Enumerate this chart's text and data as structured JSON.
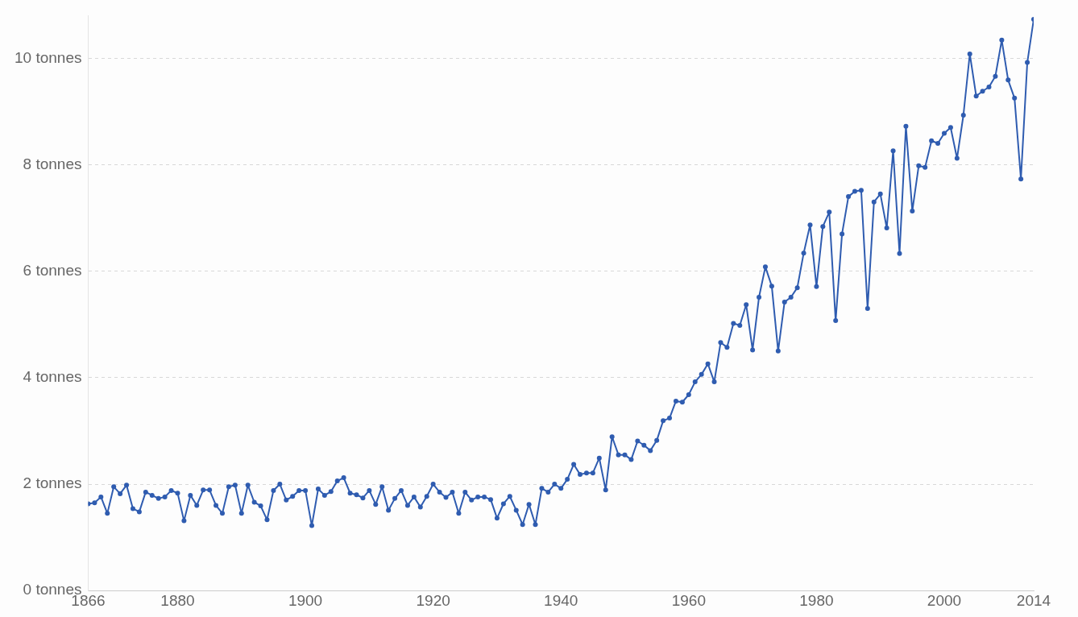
{
  "chart_data": {
    "type": "line",
    "x": [
      1866,
      1867,
      1868,
      1869,
      1870,
      1871,
      1872,
      1873,
      1874,
      1875,
      1876,
      1877,
      1878,
      1879,
      1880,
      1881,
      1882,
      1883,
      1884,
      1885,
      1886,
      1887,
      1888,
      1889,
      1890,
      1891,
      1892,
      1893,
      1894,
      1895,
      1896,
      1897,
      1898,
      1899,
      1900,
      1901,
      1902,
      1903,
      1904,
      1905,
      1906,
      1907,
      1908,
      1909,
      1910,
      1911,
      1912,
      1913,
      1914,
      1915,
      1916,
      1917,
      1918,
      1919,
      1920,
      1921,
      1922,
      1923,
      1924,
      1925,
      1926,
      1927,
      1928,
      1929,
      1930,
      1931,
      1932,
      1933,
      1934,
      1935,
      1936,
      1937,
      1938,
      1939,
      1940,
      1941,
      1942,
      1943,
      1944,
      1945,
      1946,
      1947,
      1948,
      1949,
      1950,
      1951,
      1952,
      1953,
      1954,
      1955,
      1956,
      1957,
      1958,
      1959,
      1960,
      1961,
      1962,
      1963,
      1964,
      1965,
      1966,
      1967,
      1968,
      1969,
      1970,
      1971,
      1972,
      1973,
      1974,
      1975,
      1976,
      1977,
      1978,
      1979,
      1980,
      1981,
      1982,
      1983,
      1984,
      1985,
      1986,
      1987,
      1988,
      1989,
      1990,
      1991,
      1992,
      1993,
      1994,
      1995,
      1996,
      1997,
      1998,
      1999,
      2000,
      2001,
      2002,
      2003,
      2004,
      2005,
      2006,
      2007,
      2008,
      2009,
      2010,
      2011,
      2012,
      2013,
      2014
    ],
    "series": [
      {
        "color": "#2f5cb0",
        "values": [
          1.63,
          1.65,
          1.76,
          1.45,
          1.95,
          1.82,
          1.98,
          1.54,
          1.48,
          1.85,
          1.79,
          1.73,
          1.76,
          1.88,
          1.83,
          1.31,
          1.79,
          1.6,
          1.89,
          1.89,
          1.6,
          1.45,
          1.95,
          1.98,
          1.45,
          1.98,
          1.66,
          1.59,
          1.33,
          1.88,
          2.0,
          1.7,
          1.77,
          1.88,
          1.88,
          1.22,
          1.91,
          1.79,
          1.86,
          2.06,
          2.12,
          1.83,
          1.8,
          1.74,
          1.88,
          1.62,
          1.95,
          1.51,
          1.73,
          1.88,
          1.6,
          1.76,
          1.57,
          1.77,
          2.0,
          1.85,
          1.75,
          1.85,
          1.45,
          1.85,
          1.7,
          1.76,
          1.76,
          1.71,
          1.36,
          1.63,
          1.77,
          1.51,
          1.24,
          1.62,
          1.24,
          1.92,
          1.85,
          2.0,
          1.92,
          2.09,
          2.37,
          2.18,
          2.21,
          2.21,
          2.49,
          1.89,
          2.89,
          2.55,
          2.55,
          2.46,
          2.81,
          2.73,
          2.63,
          2.82,
          3.19,
          3.24,
          3.56,
          3.54,
          3.68,
          3.92,
          4.06,
          4.26,
          3.92,
          4.66,
          4.57,
          5.02,
          4.98,
          5.37,
          4.52,
          5.51,
          6.08,
          5.72,
          4.5,
          5.42,
          5.51,
          5.69,
          6.34,
          6.87,
          5.71,
          6.84,
          7.11,
          5.07,
          6.7,
          7.4,
          7.5,
          7.52,
          5.3,
          7.3,
          7.45,
          6.81,
          8.26,
          6.33,
          8.72,
          7.13,
          7.98,
          7.95,
          8.45,
          8.4,
          8.59,
          8.7,
          8.12,
          8.93,
          10.08,
          9.29,
          9.38,
          9.46,
          9.66,
          10.34,
          9.59,
          9.25,
          7.73,
          9.92,
          10.73
        ]
      }
    ],
    "xlim": [
      1866,
      2014
    ],
    "xticks": [
      1866,
      1880,
      1900,
      1920,
      1940,
      1960,
      1980,
      2000,
      2014
    ],
    "ylim": [
      0,
      10.8
    ],
    "yticks": [
      {
        "value": 0,
        "label": "0 tonnes"
      },
      {
        "value": 2,
        "label": "2 tonnes"
      },
      {
        "value": 4,
        "label": "4 tonnes"
      },
      {
        "value": 6,
        "label": "6 tonnes"
      },
      {
        "value": 8,
        "label": "8 tonnes"
      },
      {
        "value": 10,
        "label": "10 tonnes"
      }
    ],
    "grid": "y",
    "marker": "circle",
    "line_style": "solid",
    "legend": false
  }
}
